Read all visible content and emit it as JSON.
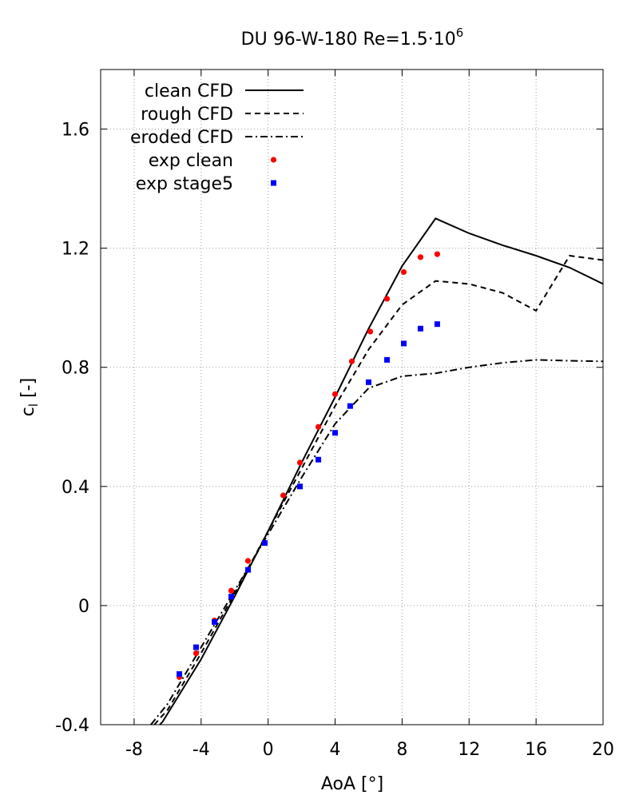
{
  "chart_data": {
    "type": "line",
    "title": "DU 96-W-180    Re=1.5·10",
    "title_superscript": "6",
    "xlabel": "AoA [°]",
    "ylabel_main": "c",
    "ylabel_sub": "l",
    "ylabel_unit": " [-]",
    "xlim": [
      -10,
      20
    ],
    "ylim": [
      -0.4,
      1.8
    ],
    "xticks": [
      -8,
      -4,
      0,
      4,
      8,
      12,
      16,
      20
    ],
    "xtick_labels": [
      "-8",
      "-4",
      "0",
      "4",
      "8",
      "12",
      "16",
      "20"
    ],
    "yticks": [
      -0.4,
      0,
      0.4,
      0.8,
      1.2,
      1.6
    ],
    "ytick_labels": [
      "-0.4",
      "0",
      "0.4",
      "0.8",
      "1.2",
      "1.6"
    ],
    "grid": true,
    "legend_position": "top-left",
    "series": [
      {
        "name": "clean CFD",
        "kind": "line",
        "style": "solid",
        "color": "#000000",
        "x": [
          -6.8,
          -6.3,
          -4,
          -2,
          0,
          2,
          4,
          6,
          8,
          10,
          12,
          14,
          16,
          18,
          20
        ],
        "y": [
          -0.42,
          -0.39,
          -0.18,
          0.03,
          0.25,
          0.48,
          0.7,
          0.93,
          1.14,
          1.3,
          1.25,
          1.21,
          1.175,
          1.135,
          1.08
        ]
      },
      {
        "name": "rough CFD",
        "kind": "line",
        "style": "dashed",
        "color": "#000000",
        "x": [
          -6.8,
          -6,
          -4,
          -2,
          0,
          2,
          4,
          6,
          8,
          10,
          12,
          14,
          16,
          18,
          20
        ],
        "y": [
          -0.4,
          -0.35,
          -0.16,
          0.04,
          0.25,
          0.46,
          0.67,
          0.86,
          1.01,
          1.09,
          1.08,
          1.05,
          0.99,
          1.175,
          1.16
        ]
      },
      {
        "name": "eroded CFD",
        "kind": "line",
        "style": "dashdot",
        "color": "#000000",
        "x": [
          -7,
          -6,
          -4,
          -2,
          0,
          2,
          4,
          6,
          8,
          10,
          12,
          14,
          16,
          18,
          20
        ],
        "y": [
          -0.4,
          -0.33,
          -0.14,
          0.05,
          0.24,
          0.43,
          0.61,
          0.73,
          0.77,
          0.78,
          0.8,
          0.815,
          0.825,
          0.822,
          0.82
        ]
      },
      {
        "name": "exp clean",
        "kind": "points",
        "marker": "circle",
        "color": "#ff0000",
        "x": [
          -5.3,
          -4.3,
          -3.2,
          -2.2,
          -1.2,
          0.9,
          1.9,
          3,
          4,
          5,
          6.1,
          7.1,
          8.1,
          9.1,
          10.1
        ],
        "y": [
          -0.24,
          -0.16,
          -0.05,
          0.05,
          0.15,
          0.37,
          0.48,
          0.6,
          0.71,
          0.82,
          0.92,
          1.03,
          1.12,
          1.17,
          1.18
        ]
      },
      {
        "name": "exp stage5",
        "kind": "points",
        "marker": "square",
        "color": "#0000ff",
        "x": [
          -5.3,
          -4.3,
          -3.2,
          -2.2,
          -1.2,
          -0.2,
          1.9,
          3,
          4,
          4.9,
          6,
          7.1,
          8.1,
          9.1,
          10.1
        ],
        "y": [
          -0.23,
          -0.14,
          -0.055,
          0.03,
          0.12,
          0.21,
          0.4,
          0.49,
          0.58,
          0.67,
          0.75,
          0.825,
          0.88,
          0.93,
          0.945
        ]
      }
    ]
  }
}
